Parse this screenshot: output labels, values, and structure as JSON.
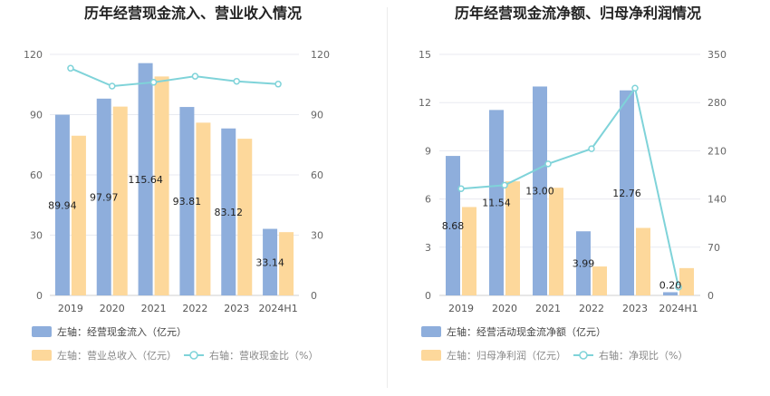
{
  "chart_data": [
    {
      "type": "bar",
      "title": "历年经营现金流入、营业收入情况",
      "categories": [
        "2019",
        "2020",
        "2021",
        "2022",
        "2023",
        "2024H1"
      ],
      "left_axis": {
        "ticks": [
          0,
          30,
          60,
          90,
          120
        ],
        "ylim": [
          0,
          120
        ]
      },
      "right_axis": {
        "ticks": [
          0,
          30,
          60,
          90,
          120
        ],
        "ylim": [
          0,
          120
        ]
      },
      "series": [
        {
          "name": "左轴：经营现金流入（亿元）",
          "kind": "bar",
          "axis": "left",
          "color": "#8eaedc",
          "values": [
            89.94,
            97.97,
            115.64,
            93.81,
            83.12,
            33.14
          ],
          "labels": [
            "89.94",
            "97.97",
            "115.64",
            "93.81",
            "83.12",
            "33.14"
          ]
        },
        {
          "name": "左轴：营业总收入（亿元）",
          "kind": "bar",
          "axis": "left",
          "color": "#fdd89b",
          "values": [
            79.5,
            94.0,
            109.0,
            86.0,
            78.0,
            31.5
          ]
        },
        {
          "name": "右轴：营收现金比（%）",
          "kind": "line",
          "axis": "right",
          "color": "#7fd3d9",
          "values": [
            113.1,
            104.2,
            106.1,
            109.1,
            106.6,
            105.2
          ]
        }
      ],
      "legend": {
        "position": "bottom"
      }
    },
    {
      "type": "bar",
      "title": "历年经营现金流净额、归母净利润情况",
      "categories": [
        "2019",
        "2020",
        "2021",
        "2022",
        "2023",
        "2024H1"
      ],
      "left_axis": {
        "ticks": [
          0,
          3,
          6,
          9,
          12,
          15
        ],
        "ylim": [
          0,
          15
        ]
      },
      "right_axis": {
        "ticks": [
          0,
          70,
          140,
          210,
          280,
          350
        ],
        "ylim": [
          0,
          350
        ]
      },
      "series": [
        {
          "name": "左轴：经营活动现金流净额（亿元）",
          "kind": "bar",
          "axis": "left",
          "color": "#8eaedc",
          "values": [
            8.68,
            11.54,
            13.0,
            3.99,
            12.76,
            0.2
          ],
          "labels": [
            "8.68",
            "11.54",
            "13.00",
            "3.99",
            "12.76",
            "0.20"
          ]
        },
        {
          "name": "左轴：归母净利润（亿元）",
          "kind": "bar",
          "axis": "left",
          "color": "#fdd89b",
          "values": [
            5.5,
            7.1,
            6.7,
            1.8,
            4.2,
            1.7
          ]
        },
        {
          "name": "右轴：净现比（%）",
          "kind": "line",
          "axis": "right",
          "color": "#7fd3d9",
          "values": [
            155,
            160,
            191,
            213,
            301,
            12
          ]
        }
      ],
      "legend": {
        "position": "bottom"
      }
    }
  ]
}
